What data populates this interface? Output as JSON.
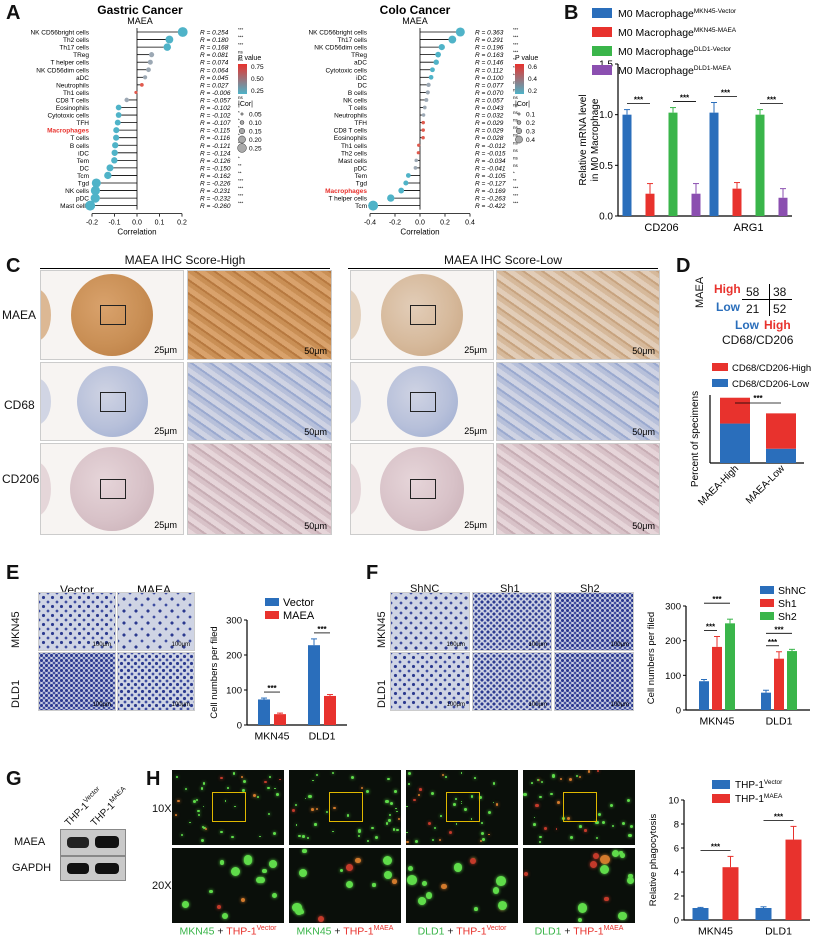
{
  "panels": {
    "A": "A",
    "B": "B",
    "C": "C",
    "D": "D",
    "E": "E",
    "F": "F",
    "G": "G",
    "H": "H"
  },
  "panelA": {
    "gastric": {
      "title": "Gastric Cancer",
      "gene": "MAEA",
      "xlabel": "Correlation",
      "ticks": [
        "-0.2",
        "-0.1",
        "0.0",
        "0.1",
        "0.2"
      ],
      "legend_pvalue_title": "P value",
      "legend_pvalue_ticks": [
        "0.75",
        "0.50",
        "0.25"
      ],
      "legend_cor_title": "|Cor|",
      "legend_cor_ticks": [
        "0.05",
        "0.10",
        "0.15",
        "0.20",
        "0.25"
      ],
      "cells": [
        "NK CD56bright cells",
        "Th2 cells",
        "Th17 cells",
        "TReg",
        "T helper cells",
        "NK CD56dim cells",
        "aDC",
        "Neutrophils",
        "Th1 cells",
        "CD8 T cells",
        "Eosinophils",
        "Cytotoxic cells",
        "TFH",
        "Macrophages",
        "T cells",
        "B cells",
        "iDC",
        "Tem",
        "DC",
        "Tcm",
        "Tgd",
        "NK cells",
        "pDC",
        "Mast cells"
      ],
      "values": [
        0.254,
        0.18,
        0.168,
        0.081,
        0.074,
        0.064,
        0.045,
        0.027,
        -0.006,
        -0.057,
        -0.102,
        -0.102,
        -0.107,
        -0.115,
        -0.116,
        -0.121,
        -0.124,
        -0.126,
        -0.15,
        -0.162,
        -0.226,
        -0.231,
        -0.232,
        -0.26
      ],
      "r_labels": [
        "R = 0.254",
        "R = 0.180",
        "R = 0.168",
        "R = 0.081",
        "R = 0.074",
        "R = 0.064",
        "R = 0.045",
        "R = 0.027",
        "R = -0.006",
        "R = -0.057",
        "R = -0.102",
        "R = -0.102",
        "R = -0.107",
        "R = -0.115",
        "R = -0.116",
        "R = -0.121",
        "R = -0.124",
        "R = -0.126",
        "R = -0.150",
        "R = -0.162",
        "R = -0.226",
        "R = -0.231",
        "R = -0.232",
        "R = -0.260"
      ],
      "sig": [
        "***",
        "***",
        "***",
        "ns",
        "ns",
        "ns",
        "ns",
        "ns",
        "ns",
        "ns",
        "*",
        "*",
        "*",
        "*",
        "*",
        "*",
        "*",
        "*",
        "**",
        "**",
        "***",
        "***",
        "***",
        "***"
      ],
      "highlight": "Macrophages"
    },
    "colo": {
      "title": "Colo Cancer",
      "gene": "MAEA",
      "xlabel": "Correlation",
      "ticks": [
        "-0.4",
        "-0.2",
        "0.0",
        "0.2",
        "0.4"
      ],
      "legend_pvalue_title": "P value",
      "legend_pvalue_ticks": [
        "0.6",
        "0.4",
        "0.2"
      ],
      "legend_cor_title": "|Cor|",
      "legend_cor_ticks": [
        "0.1",
        "0.2",
        "0.3",
        "0.4"
      ],
      "cells": [
        "NK CD56bright cells",
        "Th17 cells",
        "NK CD56dim cells",
        "TReg",
        "aDC",
        "Cytotoxic cells",
        "iDC",
        "DC",
        "B cells",
        "NK cells",
        "T cells",
        "Neutrophils",
        "TFH",
        "CD8 T cells",
        "Eosinophils",
        "Th1 cells",
        "Th2 cells",
        "Mast cells",
        "pDC",
        "Tem",
        "Tgd",
        "Macrophages",
        "T helper cells",
        "Tcm"
      ],
      "values": [
        0.363,
        0.291,
        0.196,
        0.163,
        0.146,
        0.112,
        0.1,
        0.077,
        0.07,
        0.057,
        0.043,
        0.032,
        0.029,
        0.029,
        0.028,
        -0.012,
        -0.015,
        -0.034,
        -0.041,
        -0.105,
        -0.127,
        -0.169,
        -0.263,
        -0.422
      ],
      "r_labels": [
        "R = 0.363",
        "R = 0.291",
        "R = 0.196",
        "R = 0.163",
        "R = 0.146",
        "R = 0.112",
        "R = 0.100",
        "R = 0.077",
        "R = 0.070",
        "R = 0.057",
        "R = 0.043",
        "R = 0.032",
        "R = 0.029",
        "R = 0.029",
        "R = 0.028",
        "R = -0.012",
        "R = -0.015",
        "R = -0.034",
        "R = -0.041",
        "R = -0.105",
        "R = -0.127",
        "R = -0.169",
        "R = -0.263",
        "R = -0.422"
      ],
      "sig": [
        "***",
        "***",
        "***",
        "***",
        "**",
        "*",
        "*",
        "ns",
        "ns",
        "ns",
        "ns",
        "ns",
        "ns",
        "ns",
        "ns",
        "ns",
        "ns",
        "ns",
        "ns",
        "*",
        "**",
        "***",
        "***",
        "***"
      ],
      "highlight": "Macrophages"
    }
  },
  "chart_data": [
    {
      "id": "B",
      "type": "bar",
      "categories": [
        "CD206",
        "ARG1"
      ],
      "series": [
        {
          "name": "M0 Macrophage",
          "sup": "MKN45-Vector",
          "values": [
            1.0,
            1.02
          ],
          "err": [
            0.05,
            0.1
          ],
          "color": "#2a6ebb"
        },
        {
          "name": "M0 Macrophage",
          "sup": "MKN45-MAEA",
          "values": [
            0.22,
            0.27
          ],
          "err": [
            0.1,
            0.06
          ],
          "color": "#e8322d"
        },
        {
          "name": "M0 Macrophage",
          "sup": "DLD1-Vector",
          "values": [
            1.02,
            1.0
          ],
          "err": [
            0.05,
            0.05
          ],
          "color": "#3ab54a"
        },
        {
          "name": "M0 Macrophage",
          "sup": "DLD1-MAEA",
          "values": [
            0.22,
            0.18
          ],
          "err": [
            0.1,
            0.09
          ],
          "color": "#8b4fb0"
        }
      ],
      "ylabel": "Relative mRNA level in M0 Macrophage",
      "ylim": [
        0,
        1.5
      ],
      "yticks": [
        "0.0",
        "0.5",
        "1.0",
        "1.5"
      ],
      "sig": "***"
    },
    {
      "id": "D",
      "type": "bar",
      "stacked": true,
      "categories": [
        "MAEA-High",
        "MAEA-Low"
      ],
      "series": [
        {
          "name": "CD68/CD206-Low",
          "values": [
            58,
            21
          ],
          "color": "#2a6ebb"
        },
        {
          "name": "CD68/CD206-High",
          "values": [
            38,
            52
          ],
          "color": "#e8322d"
        }
      ],
      "ylabel": "Percent of specimens",
      "sig": "***"
    },
    {
      "id": "E",
      "type": "bar",
      "categories": [
        "MKN45",
        "DLD1"
      ],
      "series": [
        {
          "name": "Vector",
          "values": [
            73,
            228
          ],
          "err": [
            4,
            18
          ],
          "color": "#2a6ebb"
        },
        {
          "name": "MAEA",
          "values": [
            31,
            83
          ],
          "err": [
            3,
            4
          ],
          "color": "#e8322d"
        }
      ],
      "ylabel": "Cell numbers per filed",
      "ylim": [
        0,
        300
      ],
      "yticks": [
        "0",
        "100",
        "200",
        "300"
      ],
      "sig": "***"
    },
    {
      "id": "F",
      "type": "bar",
      "categories": [
        "MKN45",
        "DLD1"
      ],
      "series": [
        {
          "name": "ShNC",
          "values": [
            83,
            50
          ],
          "err": [
            5,
            7
          ],
          "color": "#2a6ebb"
        },
        {
          "name": "Sh1",
          "values": [
            182,
            148
          ],
          "err": [
            30,
            20
          ],
          "color": "#e8322d"
        },
        {
          "name": "Sh2",
          "values": [
            250,
            170
          ],
          "err": [
            12,
            5
          ],
          "color": "#3ab54a"
        }
      ],
      "ylabel": "Cell numbers per filed",
      "ylim": [
        0,
        300
      ],
      "yticks": [
        "0",
        "100",
        "200",
        "300"
      ],
      "sig": "***"
    },
    {
      "id": "H",
      "type": "bar",
      "categories": [
        "MKN45",
        "DLD1"
      ],
      "series": [
        {
          "name": "THP-1",
          "sup": "Vector",
          "values": [
            1.0,
            1.0
          ],
          "err": [
            0.05,
            0.1
          ],
          "color": "#2a6ebb"
        },
        {
          "name": "THP-1",
          "sup": "MAEA",
          "values": [
            4.4,
            6.7
          ],
          "err": [
            0.9,
            1.1
          ],
          "color": "#e8322d"
        }
      ],
      "ylabel": "Relative phagocytosis",
      "ylim": [
        0,
        10
      ],
      "yticks": [
        "0",
        "2",
        "4",
        "6",
        "8",
        "10"
      ],
      "sig": "***"
    }
  ],
  "panelC": {
    "high_title": "MAEA IHC Score-High",
    "low_title": "MAEA IHC Score-Low",
    "rows": [
      "MAEA",
      "CD68",
      "CD206"
    ],
    "scale_25": "25μm",
    "scale_50": "50μm"
  },
  "panelD": {
    "row_label": "MAEA",
    "high": "High",
    "low": "Low",
    "n_hh": "58",
    "n_hl": "38",
    "n_lh": "21",
    "n_ll": "52",
    "col_low": "Low",
    "col_high": "High",
    "col_label": "CD68/CD206"
  },
  "panelE": {
    "col_vector": "Vector",
    "col_maea": "MAEA",
    "row_mkn45": "MKN45",
    "row_dld1": "DLD1",
    "scale": "100μm"
  },
  "panelF": {
    "col_shnc": "ShNC",
    "col_sh1": "Sh1",
    "col_sh2": "Sh2",
    "row_mkn45": "MKN45",
    "row_dld1": "DLD1",
    "scale": "100μm"
  },
  "panelG": {
    "col1": "THP-1",
    "col1_sup": "Vector",
    "col2": "THP-1",
    "col2_sup": "MAEA",
    "row1": "MAEA",
    "row2": "GAPDH"
  },
  "panelH": {
    "mag10": "10X",
    "mag20": "20X",
    "captions": [
      {
        "cell": "MKN45",
        "plus": " + ",
        "thp": "THP-1",
        "sup": "Vector"
      },
      {
        "cell": "MKN45",
        "plus": " + ",
        "thp": "THP-1",
        "sup": "MAEA"
      },
      {
        "cell": "DLD1",
        "plus": " + ",
        "thp": "THP-1",
        "sup": "Vector"
      },
      {
        "cell": "DLD1",
        "plus": " + ",
        "thp": "THP-1",
        "sup": "MAEA"
      }
    ]
  },
  "colors": {
    "blue": "#2a6ebb",
    "red": "#e8322d",
    "green": "#3ab54a",
    "purple": "#8b4fb0",
    "lollipop": "#4fb3c8",
    "macrophage_label": "#e8322d",
    "ihc_brown": "#a5713f",
    "ihc_blue": "#8ea3cc"
  }
}
